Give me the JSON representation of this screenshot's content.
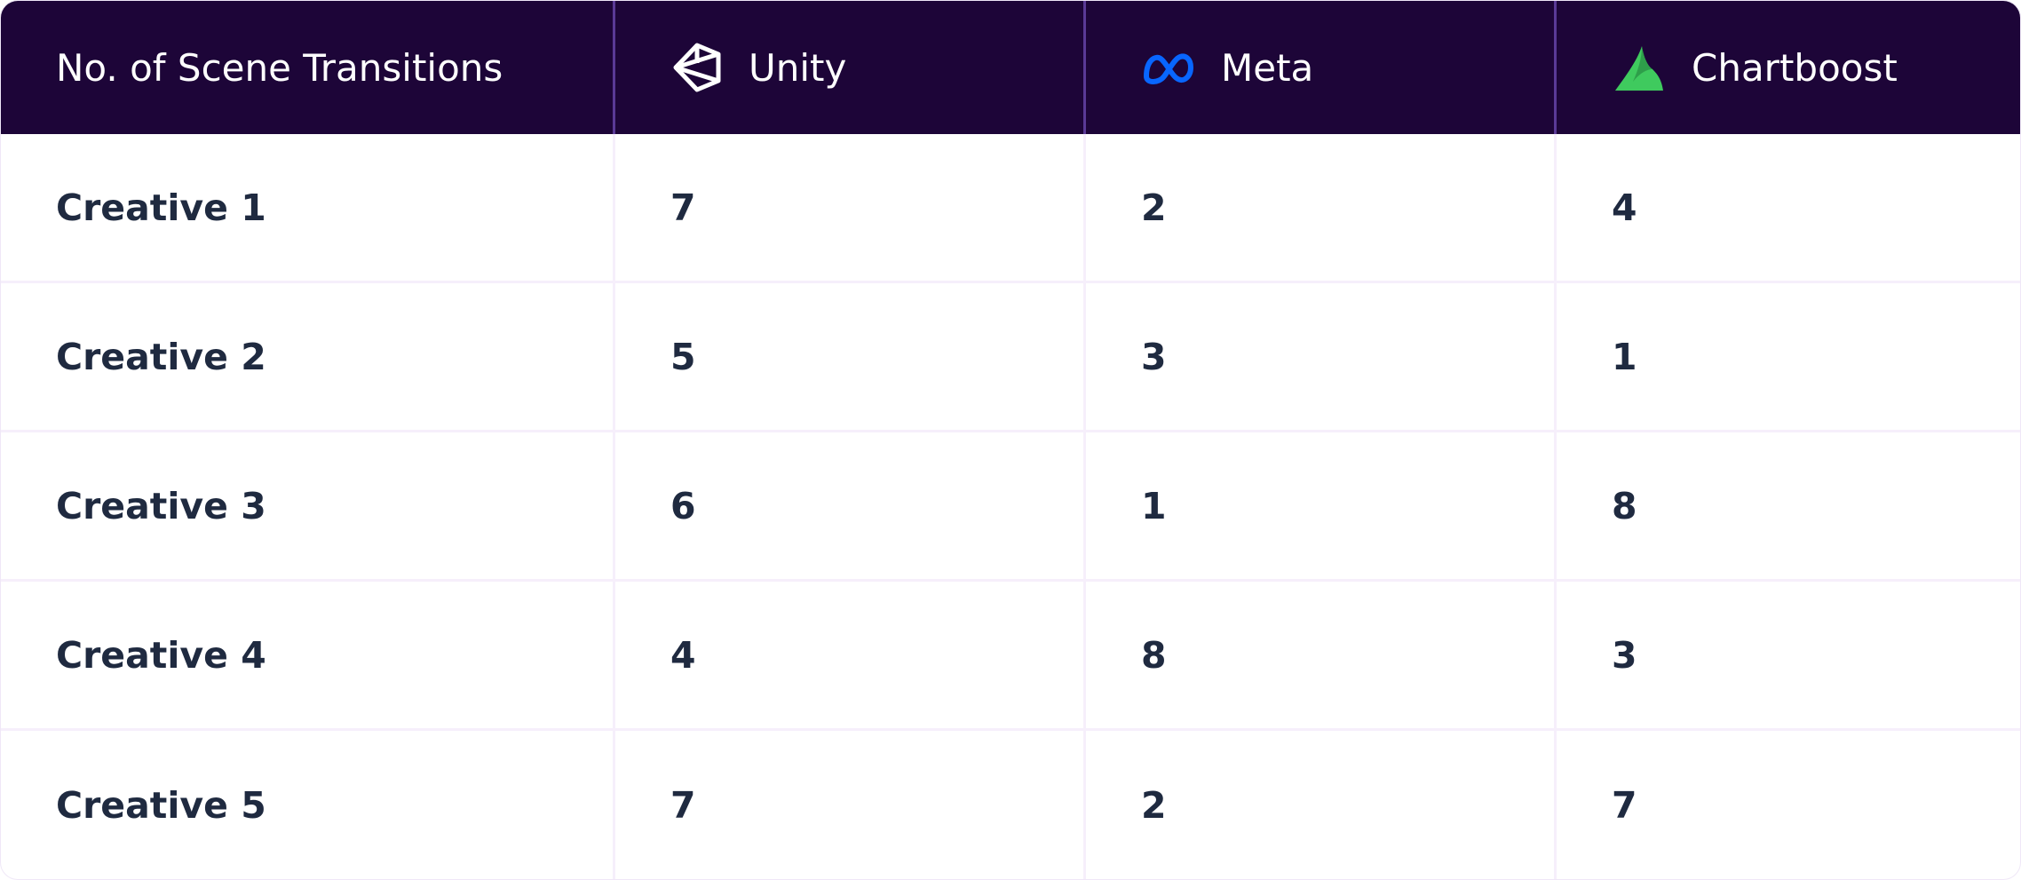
{
  "chart_data": {
    "type": "table",
    "title": "",
    "columns": [
      "No. of Scene Transitions",
      "Unity",
      "Meta",
      "Chartboost"
    ],
    "rows": [
      {
        "label": "Creative 1",
        "values": [
          "7",
          "2",
          "4"
        ]
      },
      {
        "label": "Creative 2",
        "values": [
          "5",
          "3",
          "1"
        ]
      },
      {
        "label": "Creative 3",
        "values": [
          "6",
          "1",
          "8"
        ]
      },
      {
        "label": "Creative 4",
        "values": [
          "4",
          "8",
          "3"
        ]
      },
      {
        "label": "Creative 5",
        "values": [
          "7",
          "2",
          "7"
        ]
      }
    ],
    "column_icons": [
      "",
      "unity-logo-icon",
      "meta-logo-icon",
      "chartboost-logo-icon"
    ]
  },
  "colors": {
    "header_bg": "#1d0538",
    "header_text": "#ffffff",
    "header_divider": "#5a3a96",
    "body_text": "#1f2a40",
    "grid_line": "#f6effb",
    "meta_blue": "#0866ff",
    "chartboost_green": "#3fca5e"
  }
}
